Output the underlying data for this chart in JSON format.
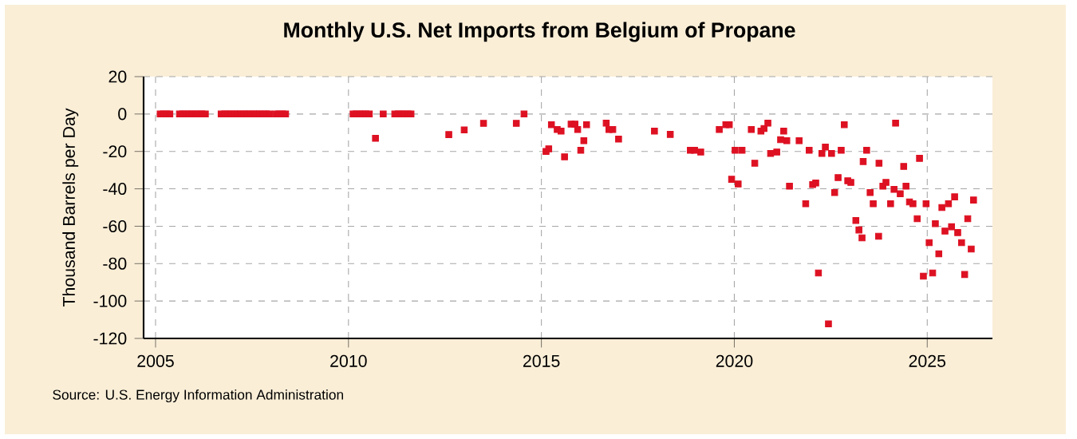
{
  "chart_data": {
    "type": "scatter",
    "title": "Monthly U.S. Net Imports from Belgium of Propane",
    "ylabel": "Thousand Barrels per Day",
    "annotations": [
      "Source: U.S. Energy Information Administration"
    ],
    "xlim": [
      2004.69,
      2026.69
    ],
    "xticks": [
      2005,
      2010,
      2015,
      2020,
      2025
    ],
    "ylim": [
      -120,
      20
    ],
    "yticks": [
      -120,
      -100,
      -80,
      -60,
      -40,
      -20,
      0,
      20
    ],
    "grid": true,
    "marker": "square",
    "series": [
      {
        "color": "#dd1122",
        "x": [
          2005.12,
          2005.2,
          2005.29,
          2005.37,
          2005.62,
          2005.7,
          2005.79,
          2005.87,
          2005.95,
          2006.04,
          2006.12,
          2006.2,
          2006.29,
          2006.7,
          2006.79,
          2006.87,
          2006.95,
          2007.04,
          2007.12,
          2007.2,
          2007.29,
          2007.37,
          2007.45,
          2007.54,
          2007.62,
          2007.7,
          2007.79,
          2007.87,
          2007.95,
          2008.12,
          2008.2,
          2008.29,
          2008.37,
          2010.12,
          2010.2,
          2010.29,
          2010.37,
          2010.45,
          2010.54,
          2010.7,
          2010.9,
          2011.2,
          2011.29,
          2011.37,
          2011.45,
          2011.54,
          2011.62,
          2012.6,
          2013.0,
          2013.5,
          2014.35,
          2014.55,
          2015.12,
          2015.19,
          2015.26,
          2015.41,
          2015.51,
          2015.6,
          2015.77,
          2015.87,
          2015.94,
          2016.02,
          2016.1,
          2016.17,
          2016.68,
          2016.75,
          2016.85,
          2017.0,
          2017.93,
          2018.34,
          2018.86,
          2018.97,
          2019.13,
          2019.61,
          2019.78,
          2019.87,
          2019.93,
          2020.02,
          2020.1,
          2020.2,
          2020.44,
          2020.53,
          2020.69,
          2020.77,
          2020.87,
          2020.94,
          2021.1,
          2021.2,
          2021.28,
          2021.36,
          2021.43,
          2021.68,
          2021.85,
          2021.94,
          2022.03,
          2022.11,
          2022.18,
          2022.27,
          2022.36,
          2022.44,
          2022.52,
          2022.6,
          2022.69,
          2022.77,
          2022.85,
          2022.94,
          2023.02,
          2023.15,
          2023.23,
          2023.31,
          2023.34,
          2023.43,
          2023.52,
          2023.6,
          2023.74,
          2023.75,
          2023.85,
          2023.93,
          2024.05,
          2024.14,
          2024.18,
          2024.3,
          2024.39,
          2024.45,
          2024.54,
          2024.63,
          2024.74,
          2024.8,
          2024.9,
          2024.97,
          2025.05,
          2025.14,
          2025.21,
          2025.3,
          2025.38,
          2025.46,
          2025.55,
          2025.63,
          2025.71,
          2025.79,
          2025.89,
          2025.97,
          2026.05,
          2026.14,
          2026.2
        ],
        "values": [
          0,
          0,
          0,
          0,
          0,
          0,
          0,
          0,
          0,
          0,
          0,
          0,
          0,
          0,
          0,
          0,
          0,
          0,
          0,
          0,
          0,
          0,
          0,
          0,
          0,
          0,
          0,
          0,
          0,
          0,
          0,
          0,
          0,
          0,
          0,
          0,
          0,
          0,
          0,
          -13,
          0,
          0,
          0,
          0,
          0,
          0,
          0,
          -11,
          -8.5,
          -5,
          -5,
          0,
          -20,
          -18.6,
          -5.7,
          -8.3,
          -9.1,
          -22.9,
          -5.4,
          -5.4,
          -8.3,
          -19.4,
          -14.3,
          -5.7,
          -4.9,
          -8.3,
          -8.3,
          -13.4,
          -9.1,
          -10.9,
          -19.4,
          -19.4,
          -20.3,
          -8.3,
          -5.7,
          -5.7,
          -34.9,
          -19.4,
          -37.4,
          -19.4,
          -8.3,
          -26.3,
          -9.1,
          -7.7,
          -4.9,
          -21.1,
          -20.3,
          -13.7,
          -9.1,
          -14.3,
          -38.6,
          -14.3,
          -48,
          -19.4,
          -37.7,
          -36.9,
          -85,
          -21.1,
          -17.7,
          -112.2,
          -21.1,
          -42,
          -34,
          -19.4,
          -5.7,
          -35.7,
          -36.6,
          -56.9,
          -62,
          -66.2,
          -25.4,
          -19.4,
          -42,
          -48,
          -65.4,
          -26.3,
          -38.6,
          -36.6,
          -48,
          -40.3,
          -4.9,
          -42.6,
          -28,
          -38.6,
          -47,
          -48,
          -56,
          -23.7,
          -86.7,
          -48,
          -68.8,
          -85,
          -58.6,
          -74.8,
          -50,
          -62.6,
          -48,
          -60.3,
          -44.3,
          -63.4,
          -68.8,
          -85.8,
          -56,
          -72.2,
          -46
        ]
      }
    ]
  }
}
